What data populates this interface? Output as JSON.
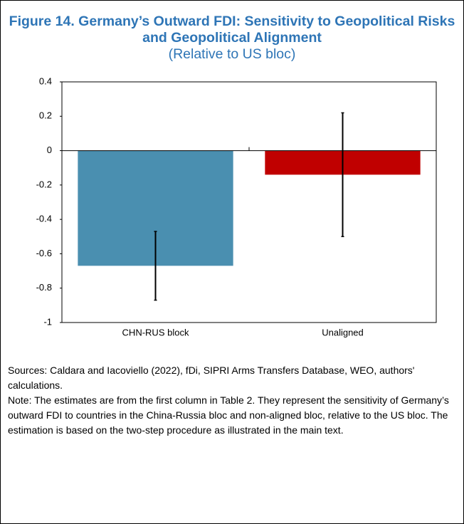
{
  "chart_data": {
    "type": "bar",
    "title": "Figure 14. Germany’s Outward FDI: Sensitivity to Geopolitical Risks and Geopolitical Alignment",
    "subtitle": "(Relative to US bloc)",
    "categories": [
      "CHN-RUS block",
      "Unaligned"
    ],
    "values": [
      -0.67,
      -0.14
    ],
    "errors": [
      0.2,
      0.36
    ],
    "colors": [
      "#4a8fb0",
      "#c00000"
    ],
    "ylim": [
      -1,
      0.4
    ],
    "yticks": [
      0.4,
      0.2,
      0,
      -0.2,
      -0.4,
      -0.6,
      -0.8,
      -1
    ]
  },
  "notes": {
    "sources": "Sources: Caldara and Iacoviello (2022), fDi, SIPRI Arms Transfers Database, WEO, authors' calculations.",
    "note": "Note: The estimates are from the first column in Table 2. They represent the sensitivity of Germany’s outward FDI to countries in the China-Russia bloc and non-aligned bloc, relative to the US bloc. The estimation is based on the two-step procedure as illustrated in the main text."
  }
}
